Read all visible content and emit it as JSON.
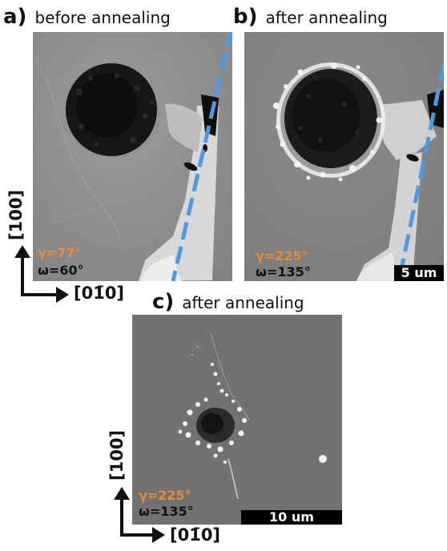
{
  "panels": {
    "a": {
      "letter": "a)",
      "caption": "before annealing",
      "gamma": "γ=77°",
      "omega": "ω=60°"
    },
    "b": {
      "letter": "b)",
      "caption": "after annealing",
      "gamma": "γ=225°",
      "omega": "ω=135°",
      "scalebar": "5 um"
    },
    "c": {
      "letter": "c)",
      "caption": "after annealing",
      "gamma": "γ=225°",
      "omega": "ω=135°",
      "scalebar": "10 um"
    }
  },
  "axes": {
    "vertical": "[100]",
    "horizontal": "[01̄0]"
  },
  "colors": {
    "gamma_text": "#f0892d",
    "dashed_line": "#4a9ae6",
    "scalebar_bg": "#000000",
    "scalebar_text": "#ffffff"
  }
}
